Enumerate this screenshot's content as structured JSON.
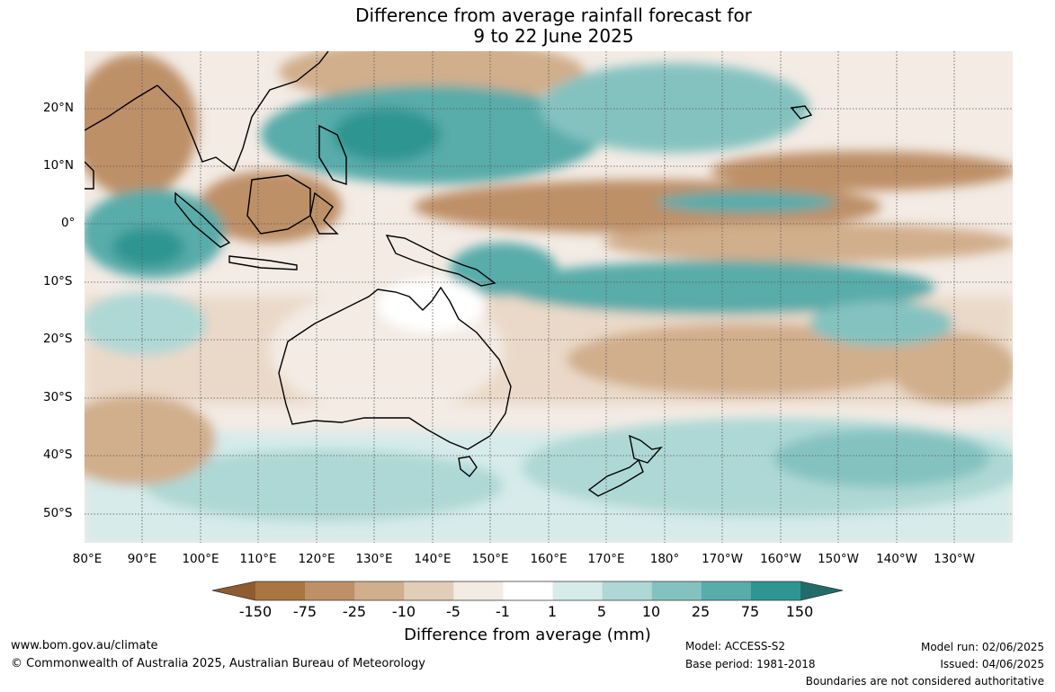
{
  "title": {
    "line1": "Difference from average rainfall forecast for",
    "line2": "9 to 22 June 2025"
  },
  "map": {
    "lat_labels": [
      "20°N",
      "10°N",
      "0°",
      "10°S",
      "20°S",
      "30°S",
      "40°S",
      "50°S"
    ],
    "lon_labels": [
      "80°E",
      "90°E",
      "100°E",
      "110°E",
      "120°E",
      "130°E",
      "140°E",
      "150°E",
      "160°E",
      "170°E",
      "180°",
      "170°W",
      "160°W",
      "150°W",
      "140°W",
      "130°W"
    ]
  },
  "colorbar": {
    "ticks": [
      "-150",
      "-75",
      "-25",
      "-10",
      "-5",
      "-1",
      "1",
      "5",
      "10",
      "25",
      "75",
      "150"
    ],
    "colors": [
      "#a97642",
      "#be9067",
      "#d1ae8c",
      "#e2cdb8",
      "#f3ebe4",
      "#ffffff",
      "#d6ebea",
      "#aed8d5",
      "#84c2c0",
      "#58acaa",
      "#2e9591"
    ],
    "below_color": "#8e5c2e",
    "above_color": "#216c6b",
    "label": "Difference from average (mm)"
  },
  "footer": {
    "website": "www.bom.gov.au/climate",
    "copyright": "© Commonwealth of Australia 2025, Australian Bureau of Meteorology",
    "model": "Model: ACCESS-S2",
    "base_period": "Base period: 1981-2018",
    "model_run": "Model run: 02/06/2025",
    "issued": "Issued: 04/06/2025",
    "disclaimer": "Boundaries are not considered authoritative"
  }
}
